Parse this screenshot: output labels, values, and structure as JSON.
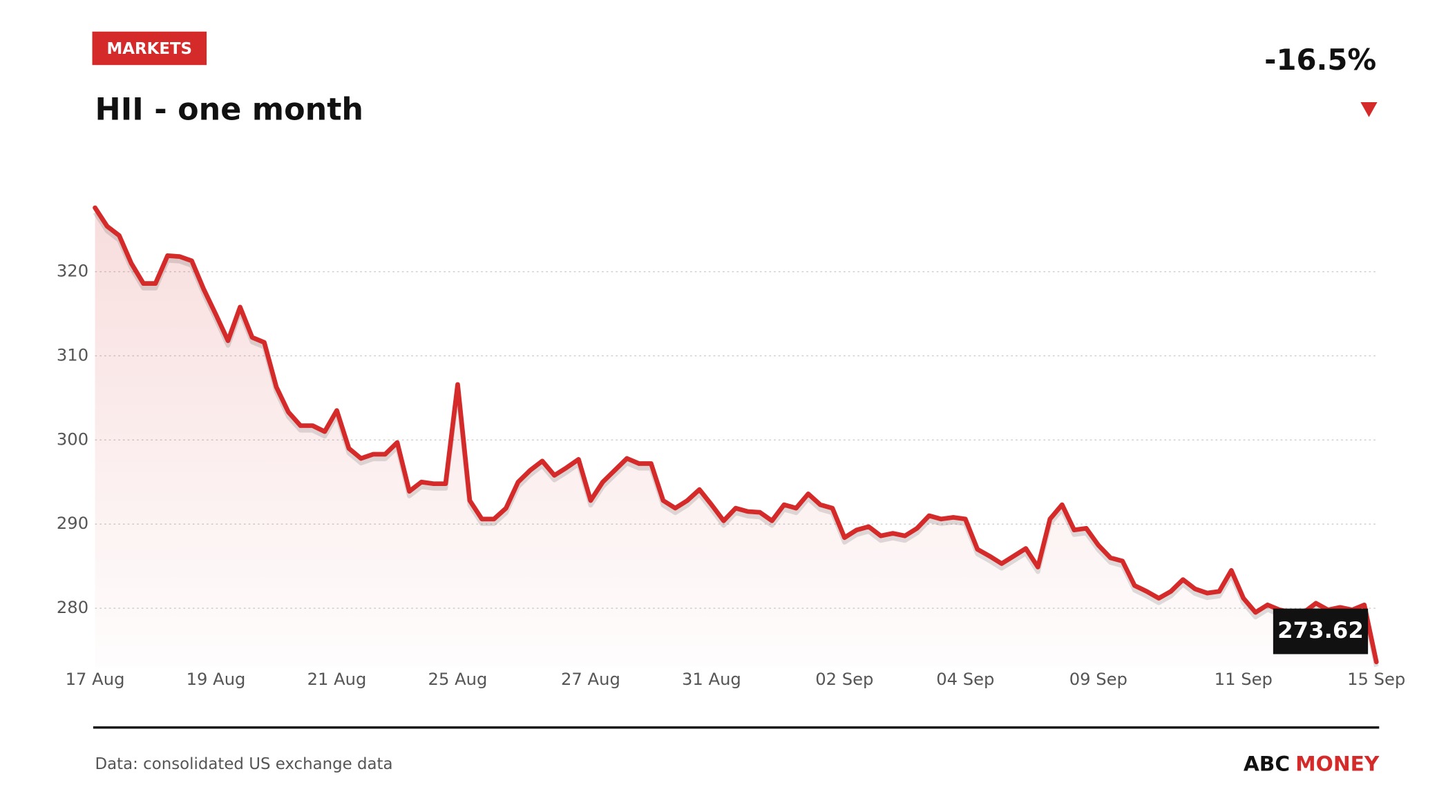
{
  "badge": "MARKETS",
  "change": "-16.5%",
  "source": "Data: consolidated US exchange data",
  "brand": {
    "first": "ABC",
    "second": "MONEY"
  },
  "chart_data": {
    "type": "line",
    "title": "HII - one month",
    "categories": [
      "17 Aug",
      null,
      null,
      null,
      null,
      null,
      null,
      null,
      null,
      null,
      "19 Aug",
      null,
      null,
      null,
      null,
      null,
      null,
      null,
      null,
      null,
      "21 Aug",
      null,
      null,
      null,
      null,
      null,
      null,
      null,
      null,
      null,
      "25 Aug",
      null,
      null,
      null,
      null,
      null,
      null,
      null,
      null,
      null,
      null,
      "27 Aug",
      null,
      null,
      null,
      null,
      null,
      null,
      null,
      null,
      null,
      "31 Aug",
      null,
      null,
      null,
      null,
      null,
      null,
      null,
      null,
      null,
      null,
      "02 Sep",
      null,
      null,
      null,
      null,
      null,
      null,
      null,
      null,
      null,
      "04 Sep",
      null,
      null,
      null,
      null,
      null,
      null,
      null,
      null,
      null,
      null,
      "09 Sep",
      null,
      null,
      null,
      null,
      null,
      null,
      null,
      null,
      null,
      null,
      null,
      "11 Sep",
      null,
      null,
      null,
      null,
      null,
      null,
      null,
      null,
      null,
      null,
      "15 Sep"
    ],
    "series": [
      {
        "name": "HII",
        "color": "#d42a2a",
        "values": [
          327.6,
          325.4,
          324.3,
          321,
          318.6,
          318.6,
          321.9,
          321.8,
          321.3,
          317.9,
          314.9,
          311.8,
          315.8,
          312.2,
          311.6,
          306.3,
          303.3,
          301.7,
          301.7,
          301,
          303.5,
          299,
          297.8,
          298.3,
          298.3,
          299.7,
          293.9,
          295,
          294.8,
          294.8,
          306.6,
          292.8,
          290.6,
          290.6,
          291.9,
          295,
          296.4,
          297.5,
          295.8,
          296.7,
          297.7,
          292.8,
          295,
          296.4,
          297.8,
          297.2,
          297.2,
          292.8,
          291.9,
          292.8,
          294.1,
          292.3,
          290.4,
          291.9,
          291.5,
          291.4,
          290.4,
          292.3,
          291.9,
          293.6,
          292.3,
          291.9,
          288.4,
          289.3,
          289.7,
          288.6,
          288.9,
          288.6,
          289.5,
          291,
          290.6,
          290.8,
          290.6,
          287,
          286.2,
          285.3,
          286.2,
          287.1,
          284.9,
          290.6,
          292.3,
          289.3,
          289.5,
          287.5,
          286,
          285.6,
          282.7,
          282,
          281.2,
          282,
          283.4,
          282.3,
          281.8,
          282,
          284.5,
          281.2,
          279.5,
          280.4,
          279.8,
          279.5,
          279.5,
          280.6,
          279.8,
          280.1,
          279.8,
          280.4,
          273.62
        ]
      }
    ],
    "ylim": [
      273,
      328
    ],
    "yticks": [
      280,
      290,
      300,
      310,
      320
    ],
    "grid": true
  }
}
